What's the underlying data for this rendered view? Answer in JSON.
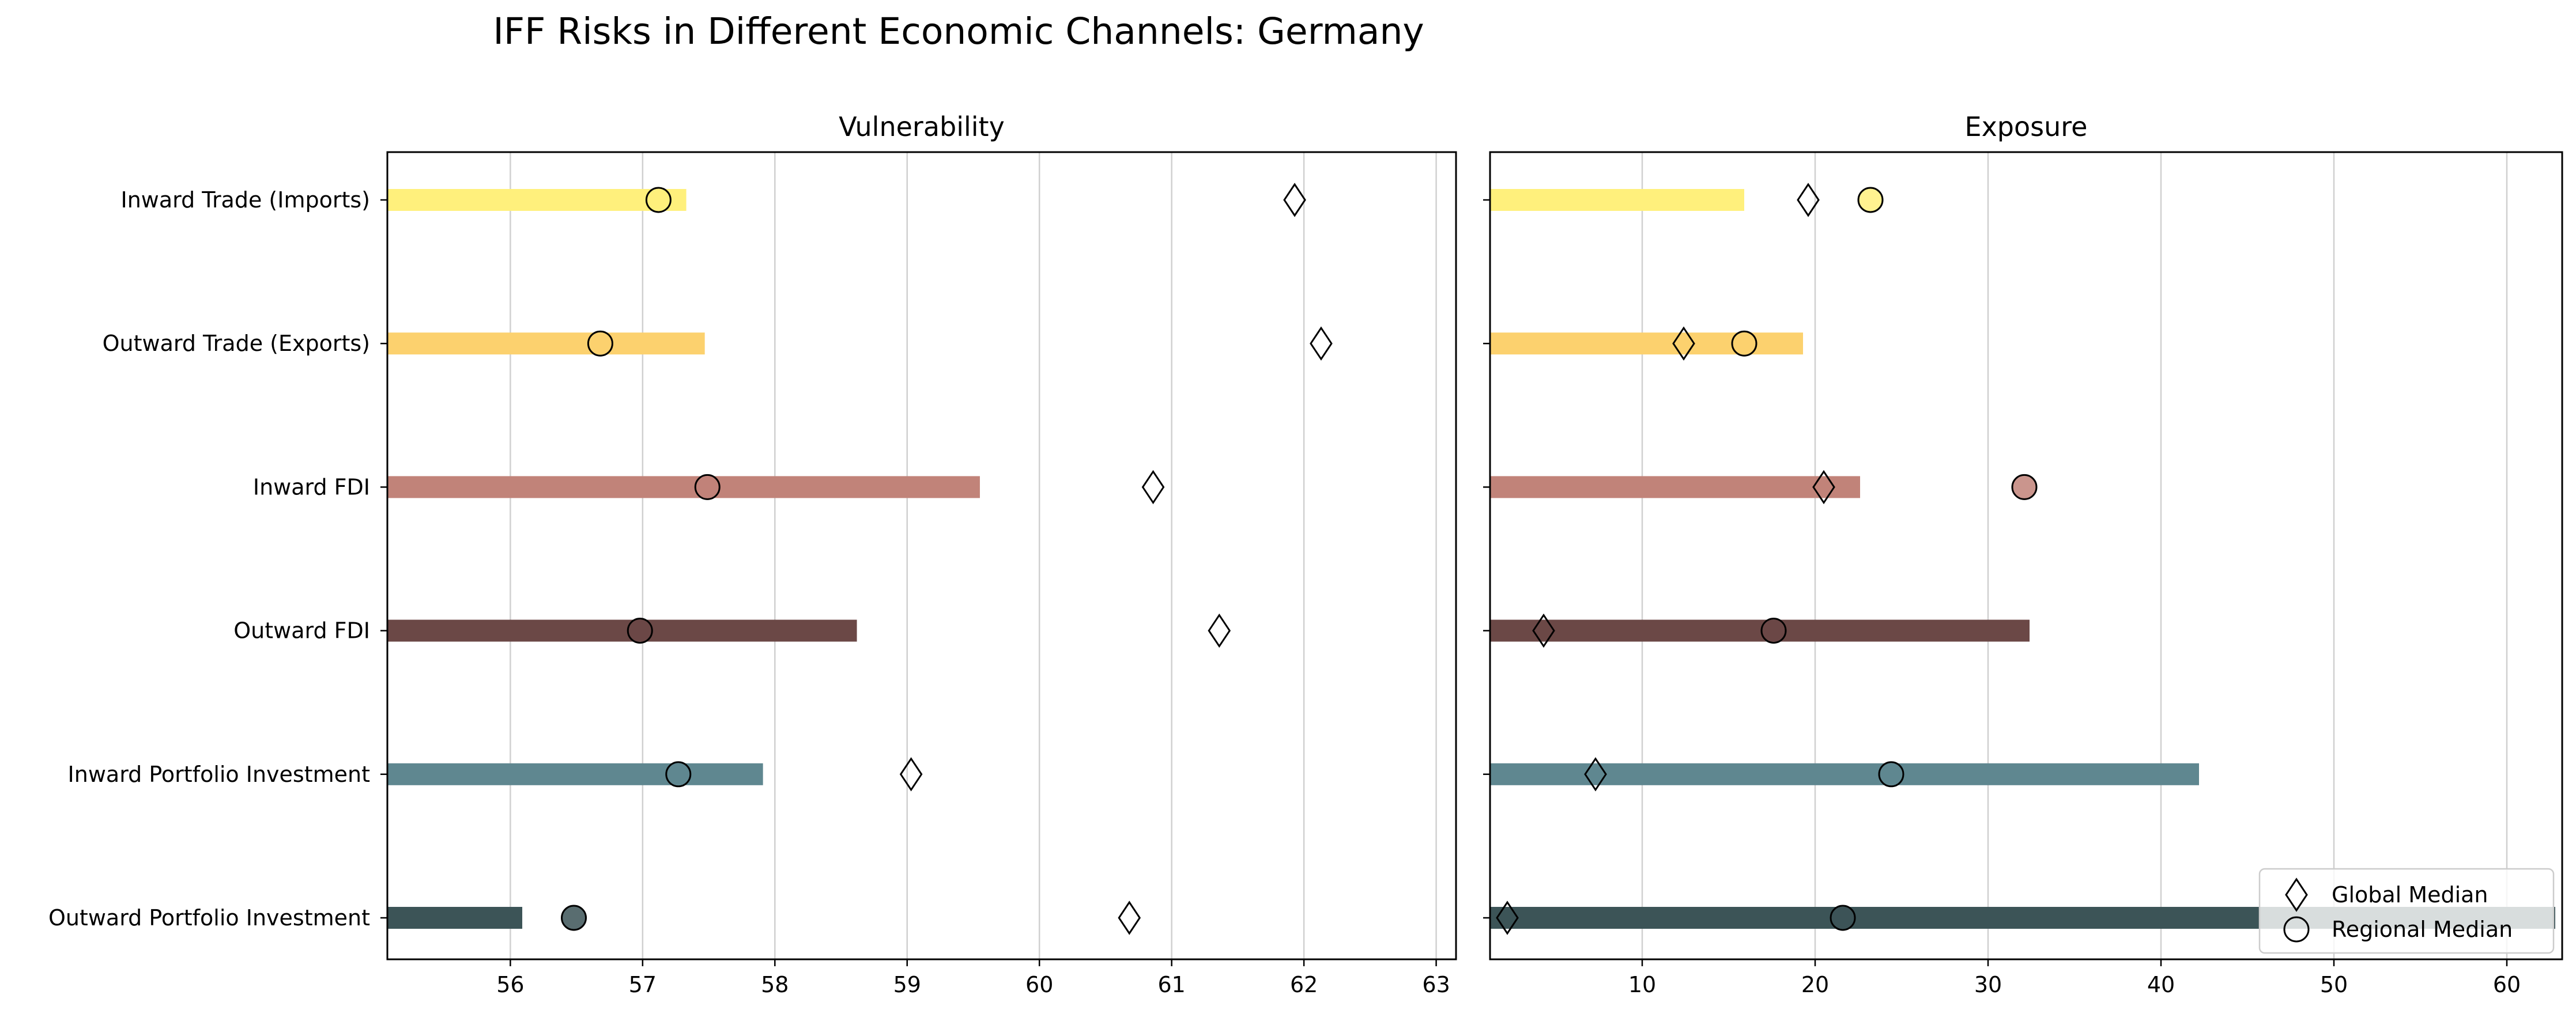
{
  "chart_data": {
    "type": "bar",
    "orientation": "horizontal",
    "title": "IFF Risks in Different Economic Channels: Germany",
    "categories": [
      "Inward Trade (Imports)",
      "Outward Trade (Exports)",
      "Inward FDI",
      "Outward FDI",
      "Inward Portfolio Investment",
      "Outward Portfolio Investment"
    ],
    "bar_colors": [
      "#fff07c",
      "#fcd16e",
      "#c18379",
      "#6b4846",
      "#5f8790",
      "#3c5457"
    ],
    "legend": {
      "placement": "lower-right",
      "entries": [
        {
          "label": "Global Median",
          "marker": "diamond"
        },
        {
          "label": "Regional Median",
          "marker": "circle"
        }
      ]
    },
    "panels": [
      {
        "title": "Vulnerability",
        "xlim": [
          55.07,
          63.15
        ],
        "xticks": [
          56,
          57,
          58,
          59,
          60,
          61,
          62,
          63
        ],
        "grid": "vertical",
        "values": [
          57.33,
          57.47,
          59.55,
          58.62,
          57.91,
          56.09
        ],
        "global_median": [
          61.93,
          62.13,
          60.86,
          61.36,
          59.03,
          60.68
        ],
        "regional_median": [
          57.12,
          56.68,
          57.49,
          56.98,
          57.27,
          56.48
        ]
      },
      {
        "title": "Exposure",
        "xlim": [
          1.2,
          63.2
        ],
        "xticks": [
          10,
          20,
          30,
          40,
          50,
          60
        ],
        "grid": "vertical",
        "values": [
          15.9,
          19.3,
          22.6,
          32.4,
          42.2,
          62.8
        ],
        "global_median": [
          19.6,
          12.4,
          20.5,
          4.3,
          7.3,
          2.2
        ],
        "regional_median": [
          23.2,
          15.9,
          32.1,
          17.6,
          24.4,
          21.6
        ]
      }
    ]
  }
}
